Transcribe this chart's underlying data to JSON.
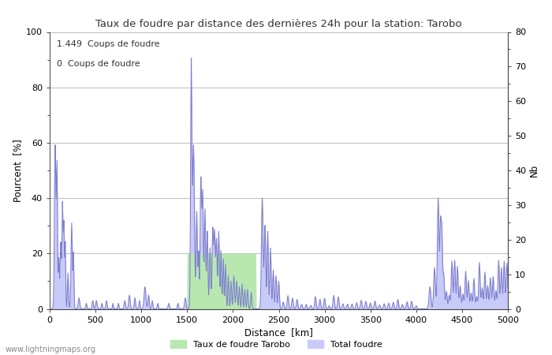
{
  "title": "Taux de foudre par distance des dernières 24h pour la station: Tarobo",
  "xlabel": "Distance  [km]",
  "ylabel_left": "Pourcent  [%]",
  "ylabel_right": "Nb",
  "annotation_line1": "1.449  Coups de foudre",
  "annotation_line2": "0  Coups de foudre",
  "legend_label1": "Taux de foudre Tarobo",
  "legend_label2": "Total foudre",
  "legend_color1": "#b8e8b0",
  "legend_color2": "#c8caf8",
  "watermark": "www.lightningmaps.org",
  "xlim": [
    0,
    5000
  ],
  "ylim_left": [
    0,
    100
  ],
  "ylim_right": [
    0,
    80
  ],
  "xticks": [
    0,
    500,
    1000,
    1500,
    2000,
    2500,
    3000,
    3500,
    4000,
    4500,
    5000
  ],
  "yticks_left": [
    0,
    20,
    40,
    60,
    80,
    100
  ],
  "yticks_right": [
    0,
    10,
    20,
    30,
    40,
    50,
    60,
    70,
    80
  ],
  "line_color": "#8080d0",
  "fill_color_total": "#c8caf8",
  "fill_color_tarobo": "#b8e8b0",
  "grid_color": "#bbbbbb",
  "background_color": "#ffffff",
  "tick_color": "#444444",
  "font_color": "#333333"
}
